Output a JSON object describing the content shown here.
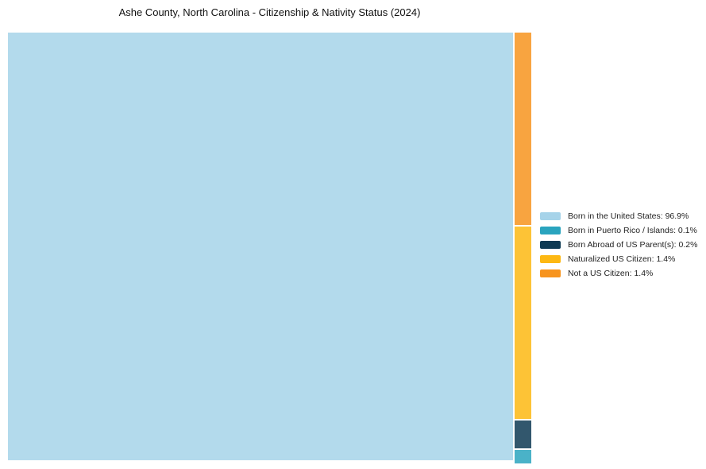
{
  "chart_data": {
    "type": "treemap",
    "title": "Ashe County, North Carolina - Citizenship & Nativity Status (2024)",
    "legend_position": "right",
    "background_color": "#ffffff",
    "items": [
      {
        "label": "Born in the United States",
        "value": 96.9,
        "color": "#a6d3e9",
        "legend_label": "Born in the United States: 96.9%"
      },
      {
        "label": "Born in Puerto Rico / Islands",
        "value": 0.1,
        "color": "#2aa4be",
        "legend_label": "Born in Puerto Rico / Islands: 0.1%"
      },
      {
        "label": "Born Abroad of US Parent(s)",
        "value": 0.2,
        "color": "#0e3a53",
        "legend_label": "Born Abroad of US Parent(s): 0.2%"
      },
      {
        "label": "Naturalized US Citizen",
        "value": 1.4,
        "color": "#fdb813",
        "legend_label": "Naturalized US Citizen: 1.4%"
      },
      {
        "label": "Not a US Citizen",
        "value": 1.4,
        "color": "#f7941e",
        "legend_label": "Not a US Citizen: 1.4%"
      }
    ]
  }
}
